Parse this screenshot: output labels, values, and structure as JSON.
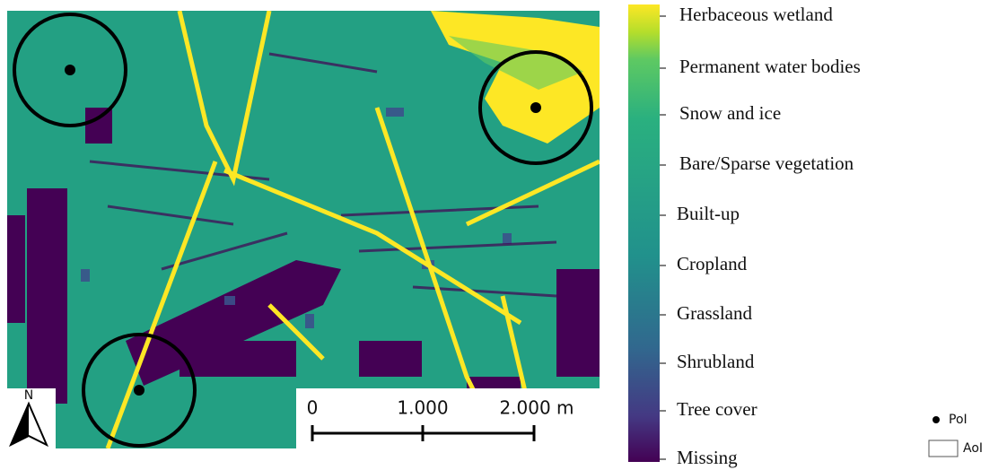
{
  "legend": {
    "labels": [
      "Herbaceous wetland",
      "Permanent water bodies",
      "Snow and ice",
      "Bare/Sparse vegetation",
      "Built-up",
      "Cropland",
      "Grassland",
      "Shrubland",
      "Tree cover",
      "Missing"
    ]
  },
  "scale_bar": {
    "labels": [
      "0",
      "1.000",
      "2.000 m"
    ]
  },
  "north_arrow": {
    "label": "N"
  },
  "symbols": {
    "point": "PoI",
    "area": "AoI"
  }
}
